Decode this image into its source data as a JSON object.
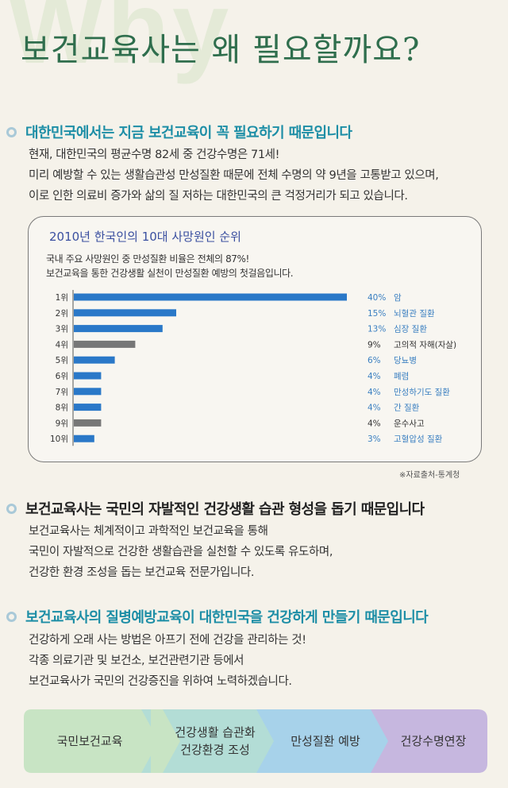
{
  "title": "보건교육사는 왜 필요할까요?",
  "background_word": "Why",
  "sections": [
    {
      "heading": "대한민국에서는 지금 보건교육이 꼭 필요하기 때문입니다",
      "lines": [
        "현재, 대한민국의 평균수명 82세 중 건강수명은 71세!",
        "미리 예방할 수 있는 생활습관성 만성질환 때문에 전체 수명의 약 9년을 고통받고 있으며,",
        "이로 인한 의료비 증가와 삶의 질 저하는 대한민국의 큰 걱정거리가 되고 있습니다."
      ]
    },
    {
      "heading": "보건교육사는 국민의 자발적인 건강생활 습관 형성을 돕기 때문입니다",
      "lines": [
        "보건교육사는 체계적이고 과학적인 보건교육을 통해",
        "국민이 자발적으로 건강한 생활습관을 실천할 수 있도록 유도하며,",
        "건강한 환경 조성을 돕는 보건교육 전문가입니다."
      ]
    },
    {
      "heading": "보건교육사의 질병예방교육이 대한민국을 건강하게 만들기 때문입니다",
      "lines": [
        "건강하게 오래 사는 방법은 아프기 전에 건강을 관리하는 것!",
        "각종 의료기관 및 보건소, 보건관련기관 등에서",
        "보건교육사가 국민의 건강증진을 위하여 노력하겠습니다."
      ]
    }
  ],
  "chart_panel": {
    "subtitle_lines": [
      "국내 주요 사망원인 중 만성질환 비율은 전체의 87%!",
      "보건교육을 통한 건강생활 실천이 만성질환 예방의 첫걸음입니다."
    ],
    "source": "※자료출처-통계청"
  },
  "chart_data": {
    "type": "bar",
    "orientation": "horizontal",
    "title": "2010년 한국인의 10대 사망원인 순위",
    "categories": [
      "1위",
      "2위",
      "3위",
      "4위",
      "5위",
      "6위",
      "7위",
      "8위",
      "9위",
      "10위"
    ],
    "values": [
      40,
      15,
      13,
      9,
      6,
      4,
      4,
      4,
      4,
      3
    ],
    "value_labels": [
      "40%",
      "15%",
      "13%",
      "9%",
      "6%",
      "4%",
      "4%",
      "4%",
      "4%",
      "3%"
    ],
    "causes": [
      "암",
      "뇌혈관 질환",
      "심장 질환",
      "고의적 자해(자살)",
      "당뇨병",
      "폐렴",
      "만성하기도 질환",
      "간 질환",
      "운수사고",
      "고혈압성 질환"
    ],
    "chronic": [
      true,
      true,
      true,
      false,
      true,
      true,
      true,
      true,
      false,
      true
    ],
    "xlim": [
      0,
      40
    ],
    "colors": {
      "chronic_bar": "#2a78c8",
      "other_bar": "#777777",
      "chronic_text": "#3a7fc1",
      "other_text": "#333333"
    }
  },
  "flow": [
    {
      "lines": [
        "국민보건교육"
      ],
      "color": "#c8e4c4"
    },
    {
      "lines": [
        "건강생활 습관화",
        "건강환경 조성"
      ],
      "color": "#b3ddd6"
    },
    {
      "lines": [
        "만성질환 예방"
      ],
      "color": "#a7d2ea"
    },
    {
      "lines": [
        "건강수명연장"
      ],
      "color": "#c6b7df"
    }
  ]
}
